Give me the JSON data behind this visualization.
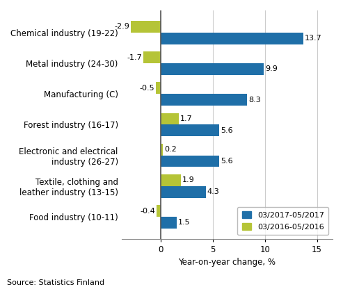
{
  "categories": [
    "Chemical industry (19-22)",
    "Metal industry (24-30)",
    "Manufacturing (C)",
    "Forest industry (16-17)",
    "Electronic and electrical\nindustry (26-27)",
    "Textile, clothing and\nleather industry (13-15)",
    "Food industry (10-11)"
  ],
  "series_2017": [
    13.7,
    9.9,
    8.3,
    5.6,
    5.6,
    4.3,
    1.5
  ],
  "series_2016": [
    -2.9,
    -1.7,
    -0.5,
    1.7,
    0.2,
    1.9,
    -0.4
  ],
  "color_2017": "#1f6fa8",
  "color_2016": "#b5c437",
  "xlabel": "Year-on-year change, %",
  "legend_2017": "03/2017-05/2017",
  "legend_2016": "03/2016-05/2016",
  "source": "Source: Statistics Finland",
  "xlim": [
    -3.8,
    16.5
  ],
  "xticks": [
    0,
    5,
    10,
    15
  ],
  "bar_height": 0.38,
  "label_fontsize": 8.0,
  "tick_fontsize": 8.5,
  "legend_fontsize": 8
}
